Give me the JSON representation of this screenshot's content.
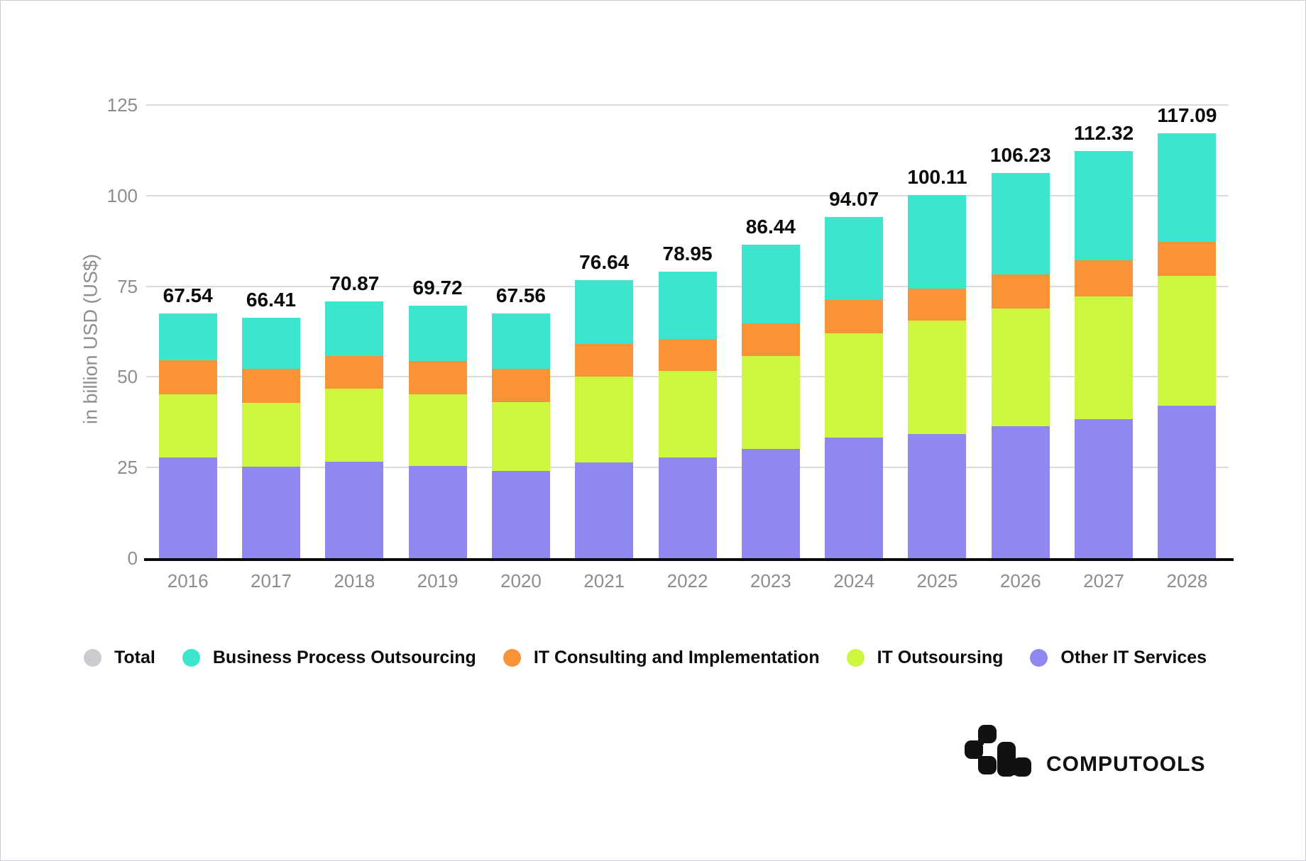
{
  "chart_data": {
    "type": "bar",
    "stacked": true,
    "categories": [
      "2016",
      "2017",
      "2018",
      "2019",
      "2020",
      "2021",
      "2022",
      "2023",
      "2024",
      "2025",
      "2026",
      "2027",
      "2028"
    ],
    "series": [
      {
        "name": "Other IT Services",
        "color": "#8F88F2",
        "values": [
          27.7,
          25.3,
          26.6,
          25.4,
          24.1,
          26.5,
          27.7,
          30.2,
          33.2,
          34.3,
          36.4,
          38.3,
          42.0
        ]
      },
      {
        "name": "IT Outsoursing",
        "color": "#CBF83E",
        "values": [
          17.4,
          17.6,
          20.1,
          19.7,
          19.0,
          23.6,
          23.9,
          25.5,
          28.8,
          31.2,
          32.4,
          33.8,
          35.8
        ]
      },
      {
        "name": "IT Consulting and Implementation",
        "color": "#FA9238",
        "values": [
          9.4,
          9.4,
          9.0,
          9.3,
          9.2,
          9.0,
          8.8,
          9.1,
          9.2,
          8.9,
          9.5,
          10.0,
          9.5
        ]
      },
      {
        "name": "Business Process Outsourcing",
        "color": "#3CE6CD",
        "values": [
          13.04,
          14.11,
          15.17,
          15.32,
          15.26,
          17.54,
          18.55,
          21.64,
          22.87,
          25.71,
          27.93,
          30.22,
          29.79
        ]
      }
    ],
    "totals": [
      67.54,
      66.41,
      70.87,
      69.72,
      67.56,
      76.64,
      78.95,
      86.44,
      94.07,
      100.11,
      106.23,
      112.32,
      117.09
    ],
    "title": "",
    "xlabel": "",
    "ylabel": "in billion USD (US$)",
    "ylim": [
      0,
      125
    ],
    "yticks": [
      0,
      25,
      50,
      75,
      100,
      125
    ],
    "grid": "horizontal",
    "legend_position": "bottom",
    "legend": [
      {
        "label": "Total",
        "color": "#CBCBD0"
      },
      {
        "label": "Business Process Outsourcing",
        "color": "#3CE6CD"
      },
      {
        "label": "IT Consulting and Implementation",
        "color": "#FA9238"
      },
      {
        "label": "IT Outsoursing",
        "color": "#CBF83E"
      },
      {
        "label": "Other IT Services",
        "color": "#8F88F2"
      }
    ]
  },
  "branding": {
    "logo_text": "COMPUTOOLS"
  },
  "colors": {
    "axis_text": "#8D8D8D",
    "gridline": "#DCDCDC",
    "axis_line": "#0B0B0B",
    "value_label": "#0B0B0B",
    "background": "#FFFFFF"
  }
}
